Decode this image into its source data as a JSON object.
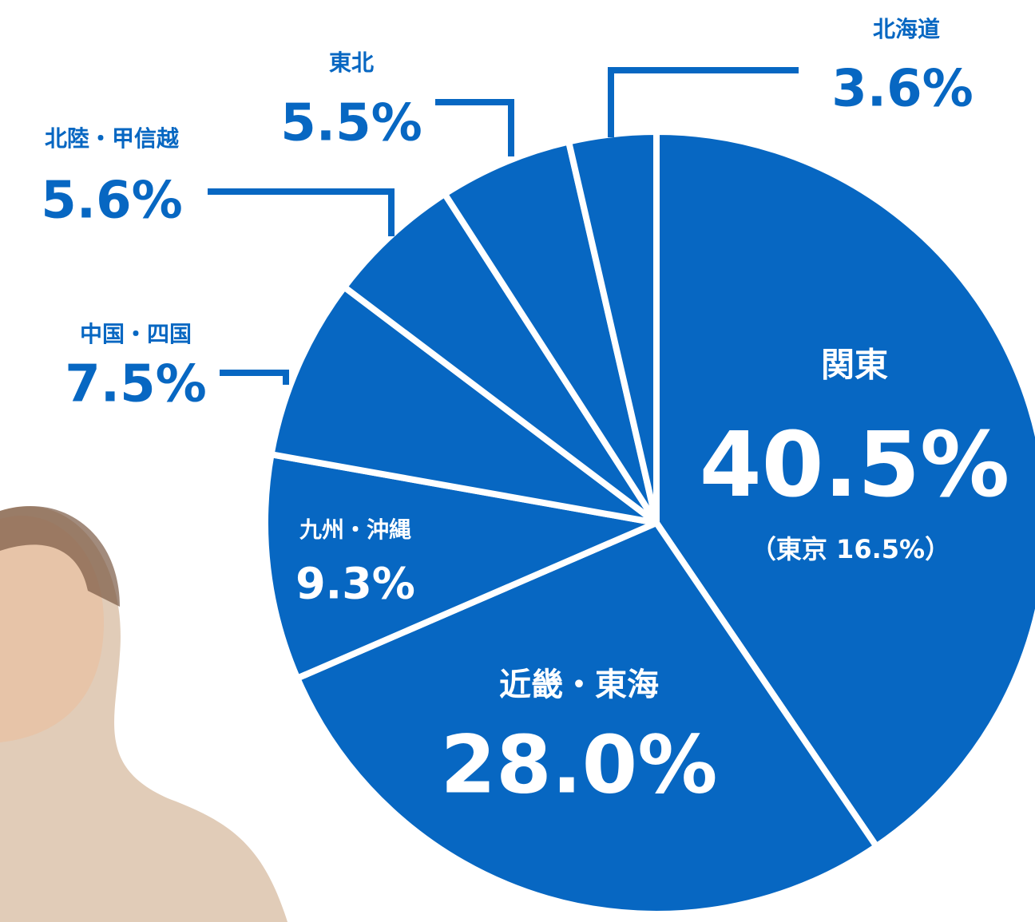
{
  "chart_data": {
    "type": "pie",
    "categories": [
      "関東",
      "近畿・東海",
      "九州・沖縄",
      "中国・四国",
      "北陸・甲信越",
      "東北",
      "北海道"
    ],
    "values": [
      40.5,
      28.0,
      9.3,
      7.5,
      5.6,
      5.5,
      3.6
    ],
    "value_labels": [
      "40.5%",
      "28.0%",
      "9.3%",
      "7.5%",
      "5.6%",
      "5.5%",
      "3.6%"
    ],
    "color": "#0767c2",
    "annotations": [
      "（東京 16.5%）"
    ]
  }
}
